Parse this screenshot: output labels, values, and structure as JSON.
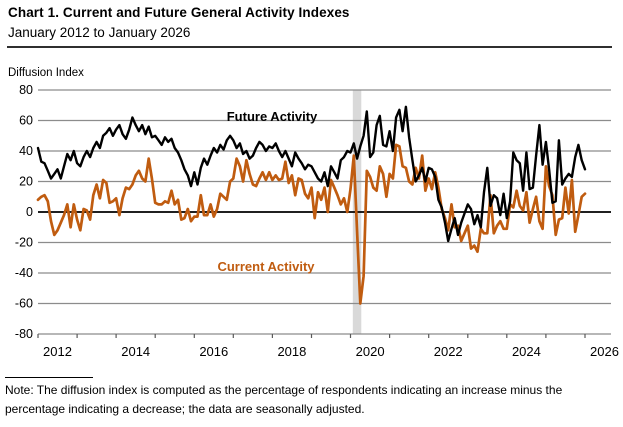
{
  "header": {
    "title": "Chart 1. Current and Future General Activity Indexes",
    "subtitle": "January 2012 to January 2026"
  },
  "note": "Note: The diffusion index is computed as the percentage of respondents indicating an increase minus the percentage indicating a decrease; the data are seasonally adjusted.",
  "colors": {
    "future_line": "#000000",
    "current_line": "#c05c10",
    "gridline": "#8c8c8c",
    "zero_line": "#000000",
    "axis": "#595959",
    "recession_band": "#d9d9d9",
    "background": "#ffffff"
  },
  "chart_data": {
    "type": "line",
    "title": "Chart 1. Current and Future General Activity Indexes",
    "subtitle": "January 2012 to January 2026",
    "ylabel": "Diffusion Index",
    "x_frequency": "monthly",
    "x_start": "2012-01",
    "x_end": "2026-01",
    "ylim": [
      -80,
      80
    ],
    "yticks": [
      80,
      60,
      40,
      20,
      0,
      -20,
      -40,
      -60,
      -80
    ],
    "xtick_years": [
      2012,
      2013,
      2014,
      2015,
      2016,
      2017,
      2018,
      2019,
      2020,
      2021,
      2022,
      2023,
      2024,
      2025,
      2026
    ],
    "xtick_labels": [
      "2012",
      "2014",
      "2016",
      "2018",
      "2020",
      "2022",
      "2024",
      "2026"
    ],
    "grid": true,
    "legend_position": "inline-labels",
    "recession_band": {
      "from": "2020-02",
      "to": "2020-04",
      "color": "#d9d9d9"
    },
    "series": [
      {
        "name": "Future Activity",
        "color": "#000000",
        "values": [
          42,
          33,
          32,
          27,
          22,
          25,
          28,
          22,
          30,
          38,
          34,
          40,
          32,
          30,
          36,
          40,
          36,
          42,
          46,
          42,
          50,
          52,
          55,
          50,
          54,
          57,
          51,
          48,
          54,
          62,
          57,
          53,
          57,
          51,
          56,
          49,
          50,
          47,
          44,
          49,
          46,
          48,
          42,
          39,
          34,
          28,
          24,
          17,
          26,
          18,
          29,
          35,
          31,
          37,
          42,
          39,
          44,
          41,
          47,
          50,
          47,
          42,
          45,
          38,
          40,
          35,
          37,
          42,
          46,
          44,
          40,
          43,
          42,
          45,
          40,
          36,
          40,
          35,
          30,
          39,
          35,
          32,
          28,
          31,
          30,
          26,
          22,
          20,
          26,
          17,
          30,
          26,
          22,
          34,
          36,
          40,
          39,
          45,
          35,
          43,
          50,
          66,
          36,
          39,
          57,
          63,
          44,
          43,
          53,
          40,
          62,
          67,
          53,
          69,
          49,
          34,
          20,
          24,
          29,
          20,
          29,
          28,
          23,
          8,
          3,
          -7,
          -19,
          -11,
          -4,
          -15,
          -7,
          -1,
          5,
          2,
          -8,
          -2,
          -10,
          13,
          29,
          4,
          11,
          9,
          -2,
          12,
          -4,
          7,
          39,
          34,
          32,
          14,
          39,
          15,
          16,
          37,
          57,
          31,
          46,
          28,
          6,
          7,
          47,
          18,
          22,
          25,
          23,
          36,
          44,
          34,
          28
        ]
      },
      {
        "name": "Current Activity",
        "color": "#c05c10",
        "values": [
          8,
          10,
          11,
          7,
          -6,
          -15,
          -12,
          -7,
          -2,
          5,
          -10,
          5,
          -5,
          -12,
          2,
          1,
          -5,
          11,
          18,
          9,
          21,
          19,
          6,
          7,
          9,
          -2,
          9,
          16,
          15,
          18,
          24,
          27,
          22,
          20,
          35,
          22,
          6,
          5,
          5,
          7,
          6,
          14,
          5,
          8,
          -5,
          -4,
          2,
          -6,
          -3,
          -3,
          11,
          -2,
          -2,
          5,
          -3,
          2,
          12,
          10,
          8,
          20,
          22,
          35,
          30,
          20,
          34,
          25,
          18,
          17,
          22,
          26,
          21,
          26,
          21,
          24,
          21,
          22,
          33,
          19,
          24,
          11,
          22,
          21,
          12,
          9,
          16,
          -4,
          13,
          8,
          16,
          0,
          21,
          16,
          11,
          5,
          9,
          0,
          15,
          37,
          -13,
          -60,
          -42,
          27,
          23,
          16,
          14,
          30,
          25,
          10,
          25,
          22,
          44,
          43,
          30,
          29,
          20,
          18,
          29,
          22,
          37,
          14,
          22,
          15,
          26,
          16,
          2,
          -4,
          -12,
          5,
          -10,
          -9,
          -19,
          -14,
          -9,
          -24,
          -22,
          -26,
          -11,
          -14,
          -14,
          11,
          -14,
          -9,
          -6,
          -11,
          -11,
          5,
          3,
          14,
          4,
          1,
          13,
          -7,
          2,
          10,
          -6,
          -11,
          30,
          17,
          11,
          -15,
          -5,
          -4,
          16,
          -1,
          21,
          -13,
          -2,
          10,
          12
        ]
      }
    ]
  }
}
